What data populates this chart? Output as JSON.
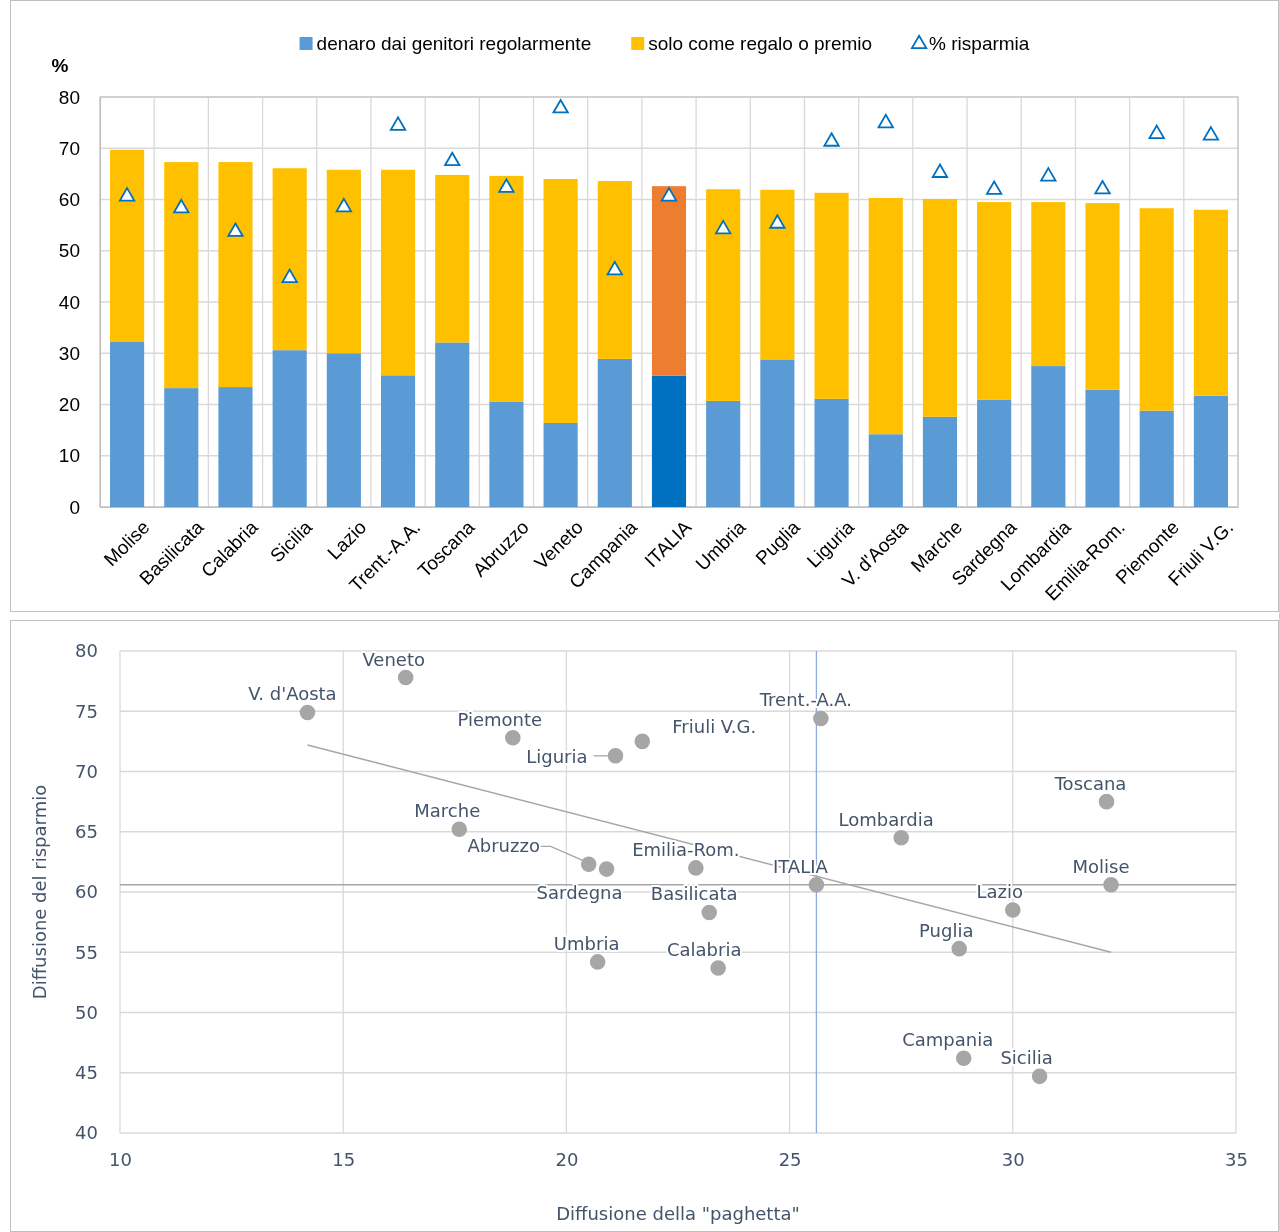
{
  "chart_data": [
    {
      "type": "bar",
      "stacked": true,
      "ylabel": "%",
      "legend": "top",
      "grid": true,
      "categories": [
        "Molise",
        "Basilicata",
        "Calabria",
        "Sicilia",
        "Lazio",
        "Trent.-A.A.",
        "Toscana",
        "Abruzzo",
        "Veneto",
        "Campania",
        "ITALIA",
        "Umbria",
        "Puglia",
        "Liguria",
        "V. d'Aosta",
        "Marche",
        "Sardegna",
        "Lombardia",
        "Emilia-Rom.",
        "Piemonte",
        "Friuli V.G."
      ],
      "ylim": [
        0,
        80
      ],
      "yticks": [
        0,
        10,
        20,
        30,
        40,
        50,
        60,
        70,
        80
      ],
      "series": [
        {
          "name": "denaro dai genitori regolarmente",
          "color": "#5b9bd5",
          "colors": [
            "#5b9bd5",
            "#5b9bd5",
            "#5b9bd5",
            "#5b9bd5",
            "#5b9bd5",
            "#5b9bd5",
            "#5b9bd5",
            "#5b9bd5",
            "#5b9bd5",
            "#5b9bd5",
            "#0070c0",
            "#5b9bd5",
            "#5b9bd5",
            "#5b9bd5",
            "#5b9bd5",
            "#5b9bd5",
            "#5b9bd5",
            "#5b9bd5",
            "#5b9bd5",
            "#5b9bd5",
            "#5b9bd5"
          ],
          "values": [
            32.2,
            23.2,
            23.4,
            30.6,
            30.0,
            25.7,
            32.1,
            20.5,
            16.4,
            28.9,
            25.6,
            20.7,
            28.8,
            21.1,
            14.2,
            17.6,
            20.9,
            27.5,
            22.9,
            18.8,
            21.7
          ]
        },
        {
          "name": "solo come regalo o premio",
          "color": "#ffc000",
          "colors": [
            "#ffc000",
            "#ffc000",
            "#ffc000",
            "#ffc000",
            "#ffc000",
            "#ffc000",
            "#ffc000",
            "#ffc000",
            "#ffc000",
            "#ffc000",
            "#ed7d31",
            "#ffc000",
            "#ffc000",
            "#ffc000",
            "#ffc000",
            "#ffc000",
            "#ffc000",
            "#ffc000",
            "#ffc000",
            "#ffc000",
            "#ffc000"
          ],
          "values": [
            37.5,
            44.1,
            43.9,
            35.5,
            35.8,
            40.1,
            32.7,
            44.1,
            47.6,
            34.7,
            37.0,
            41.3,
            33.1,
            40.2,
            46.1,
            42.5,
            38.6,
            32.0,
            36.4,
            39.5,
            36.3
          ]
        },
        {
          "name": "% risparmia",
          "type": "scatter",
          "marker": "triangle",
          "color": "#0070c0",
          "values": [
            60.6,
            58.3,
            53.7,
            44.7,
            58.5,
            74.4,
            67.5,
            62.3,
            77.8,
            46.2,
            60.6,
            54.2,
            55.3,
            71.3,
            74.9,
            65.2,
            61.9,
            64.5,
            62.0,
            72.8,
            72.5
          ]
        }
      ]
    },
    {
      "type": "scatter",
      "xlabel": "Diffusione della \"paghetta\"",
      "ylabel": "Diffusione del risparmio",
      "grid": true,
      "legend": false,
      "marker": "circle",
      "xlim": [
        10,
        35
      ],
      "xticks": [
        10,
        15,
        20,
        25,
        30,
        35
      ],
      "ylim": [
        40,
        80
      ],
      "yticks": [
        40,
        45,
        50,
        55,
        60,
        65,
        70,
        75,
        80
      ],
      "series": [
        {
          "color": "#a6a6a6",
          "x": [
            32.2,
            23.2,
            23.4,
            30.6,
            30.0,
            25.7,
            32.1,
            20.5,
            16.4,
            28.9,
            25.6,
            20.7,
            28.8,
            21.1,
            14.2,
            17.6,
            20.9,
            27.5,
            22.9,
            18.8,
            21.7
          ],
          "values": [
            60.6,
            58.3,
            53.7,
            44.7,
            58.5,
            74.4,
            67.5,
            62.3,
            77.8,
            46.2,
            60.6,
            54.2,
            55.3,
            71.3,
            74.9,
            65.2,
            61.9,
            64.5,
            62.0,
            72.8,
            72.5
          ]
        },
        {
          "type": "line",
          "marker": "none",
          "color": "#a6a6a6",
          "x": [
            14.2,
            32.2
          ],
          "values": [
            72.2,
            55.0
          ]
        }
      ],
      "ref_lines": [
        {
          "axis": "x",
          "value": 25.6,
          "color": "#8faadc"
        },
        {
          "axis": "y",
          "value": 60.6,
          "color": "#a6a6a6"
        }
      ],
      "annotations": [
        {
          "text": "Molise",
          "x": 32.2,
          "y": 60.6
        },
        {
          "text": "Basilicata",
          "x": 23.2,
          "y": 58.3
        },
        {
          "text": "Calabria",
          "x": 23.4,
          "y": 53.7
        },
        {
          "text": "Sicilia",
          "x": 30.6,
          "y": 44.7
        },
        {
          "text": "Lazio",
          "x": 30.0,
          "y": 58.5
        },
        {
          "text": "Trent.-A.A.",
          "x": 25.7,
          "y": 74.4
        },
        {
          "text": "Toscana",
          "x": 32.1,
          "y": 67.5
        },
        {
          "text": "Abruzzo",
          "x": 20.5,
          "y": 62.3
        },
        {
          "text": "Veneto",
          "x": 16.4,
          "y": 77.8
        },
        {
          "text": "Campania",
          "x": 28.9,
          "y": 46.2
        },
        {
          "text": "ITALIA",
          "x": 25.6,
          "y": 60.6
        },
        {
          "text": "Umbria",
          "x": 20.7,
          "y": 54.2
        },
        {
          "text": "Puglia",
          "x": 28.8,
          "y": 55.3
        },
        {
          "text": "Liguria",
          "x": 21.1,
          "y": 71.3
        },
        {
          "text": "V. d'Aosta",
          "x": 14.2,
          "y": 74.9
        },
        {
          "text": "Marche",
          "x": 17.6,
          "y": 65.2
        },
        {
          "text": "Sardegna",
          "x": 20.9,
          "y": 61.9
        },
        {
          "text": "Lombardia",
          "x": 27.5,
          "y": 64.5
        },
        {
          "text": "Emilia-Rom.",
          "x": 22.9,
          "y": 62.0
        },
        {
          "text": "Piemonte",
          "x": 18.8,
          "y": 72.8
        },
        {
          "text": "Friuli V.G.",
          "x": 21.7,
          "y": 72.5
        }
      ]
    }
  ]
}
